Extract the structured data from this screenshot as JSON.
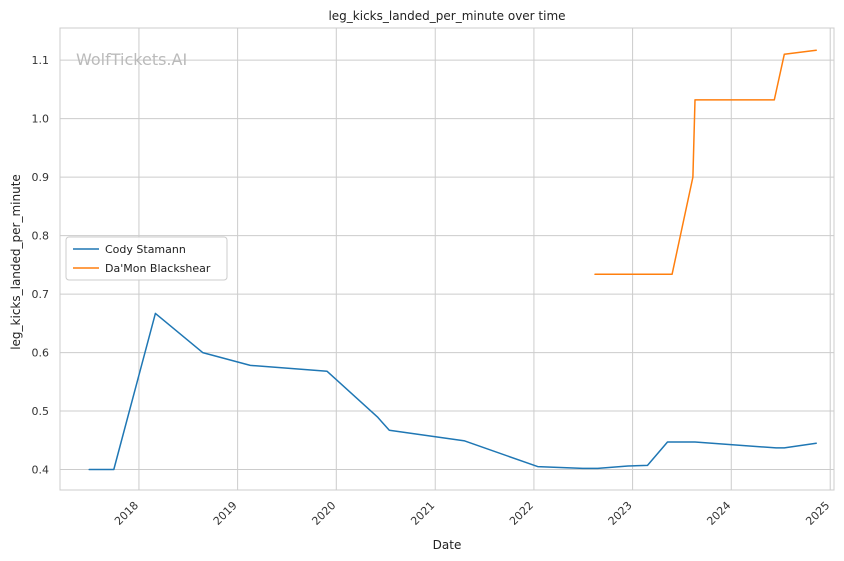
{
  "chart_data": {
    "type": "line",
    "title": "leg_kicks_landed_per_minute over time",
    "xlabel": "Date",
    "ylabel": "leg_kicks_landed_per_minute",
    "xlim": [
      "2017-03-15",
      "2025-01-15"
    ],
    "ylim": [
      0.365,
      1.155
    ],
    "x_ticks": [
      "2018",
      "2019",
      "2020",
      "2021",
      "2022",
      "2023",
      "2024",
      "2025"
    ],
    "y_ticks": [
      "0.4",
      "0.5",
      "0.6",
      "0.7",
      "0.8",
      "0.9",
      "1.0",
      "1.1"
    ],
    "grid": true,
    "legend_position": "center-left",
    "watermark": "WolfTickets.AI",
    "series": [
      {
        "name": "Cody Stamann",
        "color": "#1f77b4",
        "points": [
          [
            "2017-07-01",
            0.4
          ],
          [
            "2017-09-30",
            0.4
          ],
          [
            "2018-03-03",
            0.667
          ],
          [
            "2018-08-25",
            0.6
          ],
          [
            "2019-02-17",
            0.578
          ],
          [
            "2019-11-28",
            0.568
          ],
          [
            "2020-06-01",
            0.49
          ],
          [
            "2020-07-15",
            0.467
          ],
          [
            "2021-04-20",
            0.449
          ],
          [
            "2022-01-15",
            0.405
          ],
          [
            "2022-07-01",
            0.402
          ],
          [
            "2022-08-25",
            0.402
          ],
          [
            "2022-12-15",
            0.406
          ],
          [
            "2023-02-25",
            0.407
          ],
          [
            "2023-05-10",
            0.447
          ],
          [
            "2023-08-20",
            0.447
          ],
          [
            "2024-06-15",
            0.437
          ],
          [
            "2024-07-15",
            0.437
          ],
          [
            "2024-11-10",
            0.445
          ]
        ]
      },
      {
        "name": "Da'Mon Blackshear",
        "color": "#ff7f0e",
        "points": [
          [
            "2022-08-15",
            0.734
          ],
          [
            "2023-05-27",
            0.734
          ],
          [
            "2023-08-12",
            0.9
          ],
          [
            "2023-08-20",
            1.032
          ],
          [
            "2024-06-08",
            1.032
          ],
          [
            "2024-07-15",
            1.11
          ],
          [
            "2024-11-10",
            1.117
          ]
        ]
      }
    ]
  }
}
